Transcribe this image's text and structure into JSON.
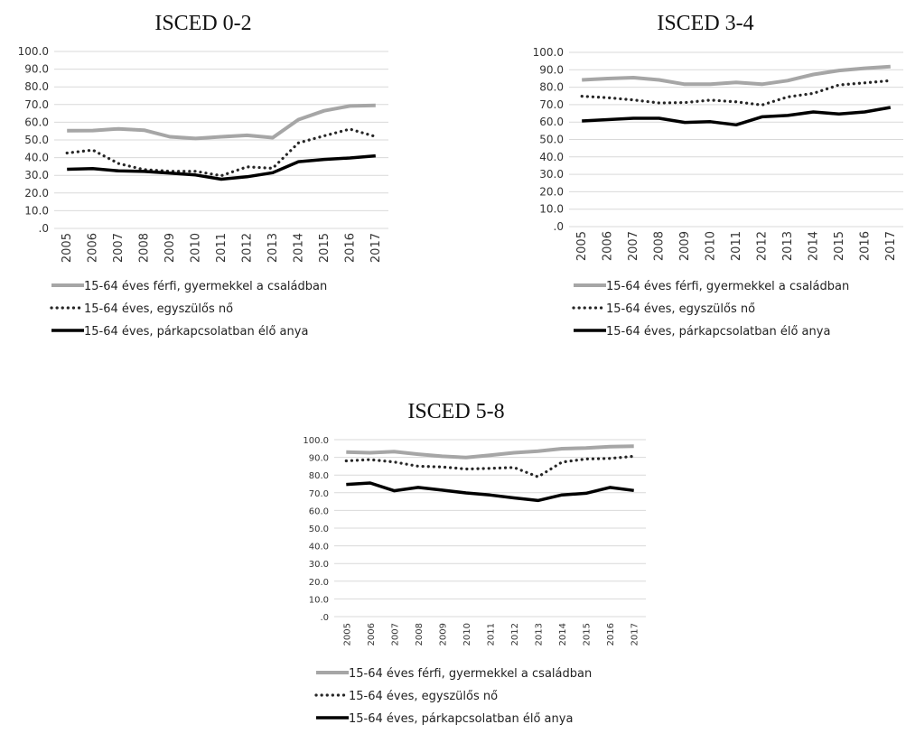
{
  "legend": {
    "men": "15-64 éves férfi, gyermekkel a családban",
    "single": "15-64 éves, egyszülős nő",
    "partner": "15-64 éves, párkapcsolatban élő anya"
  },
  "colors": {
    "men": "#a6a6a6",
    "single": "#262626",
    "partner": "#000000",
    "grid": "#d9d9d9"
  },
  "chart_data": [
    {
      "type": "line",
      "title": "ISCED 0-2",
      "x": [
        "2005",
        "2006",
        "2007",
        "2008",
        "2009",
        "2010",
        "2011",
        "2012",
        "2013",
        "2014",
        "2015",
        "2016",
        "2017"
      ],
      "y_ticks": [
        ".0",
        "10.0",
        "20.0",
        "30.0",
        "40.0",
        "50.0",
        "60.0",
        "70.0",
        "80.0",
        "90.0",
        "100.0"
      ],
      "ylim": [
        0,
        100
      ],
      "grid": true,
      "legend_position": "bottom-left",
      "series": [
        {
          "name": "15-64 éves férfi, gyermekkel a családban",
          "style": "solid-gray",
          "values": [
            55.2,
            55.3,
            56.3,
            55.5,
            51.8,
            50.8,
            51.8,
            52.6,
            51.3,
            61.5,
            66.5,
            69.2,
            69.5
          ]
        },
        {
          "name": "15-64 éves, egyszülős nő",
          "style": "dotted",
          "values": [
            42.6,
            44.3,
            36.7,
            33.2,
            32.3,
            32.3,
            29.8,
            34.8,
            34.0,
            48.3,
            52.3,
            56.1,
            51.9
          ]
        },
        {
          "name": "15-64 éves, párkapcsolatban élő anya",
          "style": "solid-black",
          "values": [
            33.4,
            33.8,
            32.5,
            32.2,
            31.2,
            30.2,
            27.8,
            29.2,
            31.5,
            37.7,
            39.0,
            39.8,
            41.0
          ]
        }
      ]
    },
    {
      "type": "line",
      "title": "ISCED 3-4",
      "x": [
        "2005",
        "2006",
        "2007",
        "2008",
        "2009",
        "2010",
        "2011",
        "2012",
        "2013",
        "2014",
        "2015",
        "2016",
        "2017"
      ],
      "y_ticks": [
        ".0",
        "10.0",
        "20.0",
        "30.0",
        "40.0",
        "50.0",
        "60.0",
        "70.0",
        "80.0",
        "90.0",
        "100.0"
      ],
      "ylim": [
        0,
        100
      ],
      "grid": true,
      "legend_position": "bottom-left",
      "series": [
        {
          "name": "15-64 éves férfi, gyermekkel a családban",
          "style": "solid-gray",
          "values": [
            84.2,
            85.0,
            85.5,
            84.2,
            81.7,
            81.7,
            82.8,
            81.7,
            83.8,
            87.3,
            89.6,
            90.9,
            91.8
          ]
        },
        {
          "name": "15-64 éves, egyszülős nő",
          "style": "dotted",
          "values": [
            74.8,
            74.0,
            72.7,
            71.0,
            71.2,
            72.6,
            71.6,
            69.8,
            74.4,
            76.5,
            81.3,
            82.5,
            83.8
          ]
        },
        {
          "name": "15-64 éves, párkapcsolatban élő anya",
          "style": "solid-black",
          "values": [
            60.6,
            61.4,
            62.2,
            62.2,
            59.8,
            60.2,
            58.4,
            63.0,
            63.8,
            65.8,
            64.6,
            65.8,
            68.4
          ]
        }
      ]
    },
    {
      "type": "line",
      "title": "ISCED 5-8",
      "x": [
        "2005",
        "2006",
        "2007",
        "2008",
        "2009",
        "2010",
        "2011",
        "2012",
        "2013",
        "2014",
        "2015",
        "2016",
        "2017"
      ],
      "y_ticks": [
        ".0",
        "10.0",
        "20.0",
        "30.0",
        "40.0",
        "50.0",
        "60.0",
        "70.0",
        "80.0",
        "90.0",
        "100.0"
      ],
      "ylim": [
        0,
        100
      ],
      "grid": true,
      "legend_position": "bottom-left",
      "series": [
        {
          "name": "15-64 éves férfi, gyermekkel a családban",
          "style": "solid-gray",
          "values": [
            93.0,
            92.6,
            93.2,
            91.8,
            90.6,
            89.9,
            91.2,
            92.6,
            93.5,
            94.9,
            95.3,
            96.0,
            96.3
          ]
        },
        {
          "name": "15-64 éves, egyszülős nő",
          "style": "dotted",
          "values": [
            88.0,
            88.7,
            87.4,
            85.0,
            84.6,
            83.4,
            83.8,
            84.3,
            79.0,
            87.3,
            89.1,
            89.4,
            90.6
          ]
        },
        {
          "name": "15-64 éves, párkapcsolatban élő anya",
          "style": "solid-black",
          "values": [
            74.7,
            75.5,
            71.1,
            73.0,
            71.5,
            69.9,
            68.7,
            67.1,
            65.6,
            68.8,
            69.7,
            73.0,
            71.3
          ]
        }
      ]
    }
  ]
}
